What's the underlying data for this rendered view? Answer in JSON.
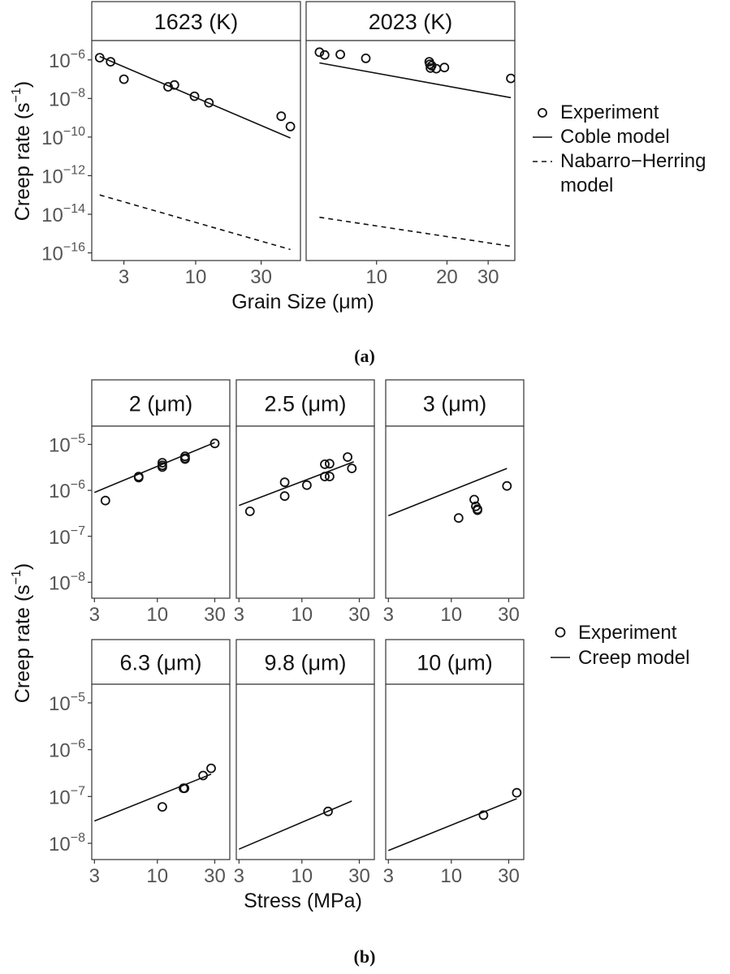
{
  "chart_data": [
    {
      "type": "scatter",
      "caption": "(a)",
      "xlabel": "Grain Size (μm)",
      "ylabel": "Creep rate (s",
      "ylabel_superscript": "−1",
      "ylabel_close": ")",
      "x_scale": "log",
      "y_scale": "log",
      "y_tick_base": "10",
      "ylim": [
        4e-17,
        1e-05
      ],
      "grid": false,
      "legend_position": "right",
      "legend": [
        {
          "symbol": "circle",
          "label": "Experiment"
        },
        {
          "symbol": "solid-line",
          "label": "Coble model"
        },
        {
          "symbol": "dashed-line",
          "label": "Nabarro−Herring"
        },
        {
          "symbol": "none",
          "label": "model"
        }
      ],
      "y_ticks": [
        {
          "exp": "−6",
          "value": 1e-06
        },
        {
          "exp": "−8",
          "value": 1e-08
        },
        {
          "exp": "−10",
          "value": 1e-10
        },
        {
          "exp": "−12",
          "value": 1e-12
        },
        {
          "exp": "−14",
          "value": 1e-14
        },
        {
          "exp": "−16",
          "value": 1e-16
        }
      ],
      "panels": [
        {
          "strip": "1623 (K)",
          "xlim": [
            1.75,
            58
          ],
          "x_ticks": [
            {
              "label": "3",
              "value": 3
            },
            {
              "label": "10",
              "value": 10
            },
            {
              "label": "30",
              "value": 30
            }
          ],
          "series": [
            {
              "name": "Experiment",
              "kind": "points",
              "x": [
                2.0,
                2.4,
                3.0,
                6.3,
                7.0,
                9.8,
                12.5,
                42,
                49
              ],
              "y": [
                1.3e-06,
                8e-07,
                1e-07,
                4e-08,
                5e-08,
                1.3e-08,
                6e-09,
                1.2e-09,
                3.5e-10
              ]
            },
            {
              "name": "Coble model",
              "kind": "line",
              "x": [
                2.0,
                49
              ],
              "y": [
                1.5e-06,
                9e-11
              ]
            },
            {
              "name": "Nabarro−Herring model",
              "kind": "dashed",
              "x": [
                2.0,
                49
              ],
              "y": [
                1e-13,
                1.5e-16
              ]
            }
          ]
        },
        {
          "strip": "2023 (K)",
          "xlim": [
            5.0,
            39
          ],
          "x_ticks": [
            {
              "label": "10",
              "value": 10
            },
            {
              "label": "20",
              "value": 20
            },
            {
              "label": "30",
              "value": 30
            }
          ],
          "series": [
            {
              "name": "Experiment",
              "kind": "points",
              "x": [
                5.7,
                6.0,
                7.0,
                9.0,
                16.8,
                16.9,
                17.2,
                17.0,
                18.0,
                19.5,
                37.5
              ],
              "y": [
                2.5e-06,
                1.8e-06,
                1.9e-06,
                1.2e-06,
                8e-07,
                6e-07,
                5e-07,
                3.8e-07,
                3.5e-07,
                4e-07,
                1.1e-07
              ]
            },
            {
              "name": "Coble model",
              "kind": "line",
              "x": [
                5.7,
                37.5
              ],
              "y": [
                7e-07,
                1.1e-08
              ]
            },
            {
              "name": "Nabarro−Herring model",
              "kind": "dashed",
              "x": [
                5.7,
                37.5
              ],
              "y": [
                7e-15,
                2.2e-16
              ]
            }
          ]
        }
      ]
    },
    {
      "type": "scatter",
      "caption": "(b)",
      "xlabel": "Stress (MPa)",
      "ylabel": "Creep rate (s",
      "ylabel_superscript": "−1",
      "ylabel_close": ")",
      "x_scale": "log",
      "y_scale": "log",
      "y_tick_base": "10",
      "xlim": [
        2.85,
        40
      ],
      "ylim": [
        4.5e-09,
        2.5e-05
      ],
      "grid": false,
      "legend_position": "right",
      "legend": [
        {
          "symbol": "circle",
          "label": "Experiment"
        },
        {
          "symbol": "solid-line",
          "label": "Creep model"
        }
      ],
      "x_ticks": [
        {
          "label": "3",
          "value": 3
        },
        {
          "label": "10",
          "value": 10
        },
        {
          "label": "30",
          "value": 30
        }
      ],
      "y_ticks": [
        {
          "exp": "−5",
          "value": 1e-05
        },
        {
          "exp": "−6",
          "value": 1e-06
        },
        {
          "exp": "−7",
          "value": 1e-07
        },
        {
          "exp": "−8",
          "value": 1e-08
        }
      ],
      "panels": [
        {
          "strip": "2 (μm)",
          "series": [
            {
              "name": "Experiment",
              "kind": "points",
              "x": [
                3.7,
                7.0,
                7.0,
                11,
                11,
                11,
                17,
                17,
                17,
                30
              ],
              "y": [
                6e-07,
                2e-06,
                1.9e-06,
                4e-06,
                3.5e-06,
                3.2e-06,
                5.5e-06,
                5e-06,
                4.8e-06,
                1.05e-05
              ]
            },
            {
              "name": "Creep model",
              "kind": "line",
              "x": [
                3.0,
                30
              ],
              "y": [
                9e-07,
                1.1e-05
              ]
            }
          ]
        },
        {
          "strip": "2.5 (μm)",
          "series": [
            {
              "name": "Experiment",
              "kind": "points",
              "x": [
                3.7,
                7.2,
                7.2,
                11,
                15.5,
                15.5,
                17,
                17,
                24,
                26
              ],
              "y": [
                3.5e-07,
                1.5e-06,
                7.5e-07,
                1.3e-06,
                3.7e-06,
                2e-06,
                3.8e-06,
                2e-06,
                5.3e-06,
                3e-06
              ]
            },
            {
              "name": "Creep model",
              "kind": "line",
              "x": [
                3.0,
                27
              ],
              "y": [
                4.7e-07,
                4.2e-06
              ]
            }
          ]
        },
        {
          "strip": "3 (μm)",
          "series": [
            {
              "name": "Experiment",
              "kind": "points",
              "x": [
                11.5,
                15.5,
                16,
                16.5,
                16.5,
                29
              ],
              "y": [
                2.5e-07,
                6.3e-07,
                4.5e-07,
                3.9e-07,
                3.7e-07,
                1.25e-06
              ]
            },
            {
              "name": "Creep model",
              "kind": "line",
              "x": [
                3.0,
                29
              ],
              "y": [
                2.8e-07,
                3e-06
              ]
            }
          ]
        },
        {
          "strip": "6.3 (μm)",
          "series": [
            {
              "name": "Experiment",
              "kind": "points",
              "x": [
                11,
                16.5,
                16.8,
                24,
                28
              ],
              "y": [
                6e-08,
                1.5e-07,
                1.5e-07,
                2.8e-07,
                4e-07
              ]
            },
            {
              "name": "Creep model",
              "kind": "line",
              "x": [
                3.0,
                28
              ],
              "y": [
                3e-08,
                3e-07
              ]
            }
          ]
        },
        {
          "strip": "9.8 (μm)",
          "series": [
            {
              "name": "Experiment",
              "kind": "points",
              "x": [
                16.5
              ],
              "y": [
                4.8e-08
              ]
            },
            {
              "name": "Creep model",
              "kind": "line",
              "x": [
                3.0,
                26
              ],
              "y": [
                7.5e-09,
                8e-08
              ]
            }
          ]
        },
        {
          "strip": "10 (μm)",
          "series": [
            {
              "name": "Experiment",
              "kind": "points",
              "x": [
                18.5,
                35
              ],
              "y": [
                4e-08,
                1.2e-07
              ]
            },
            {
              "name": "Creep model",
              "kind": "line",
              "x": [
                3.0,
                35
              ],
              "y": [
                7e-09,
                9e-08
              ]
            }
          ]
        }
      ]
    }
  ]
}
